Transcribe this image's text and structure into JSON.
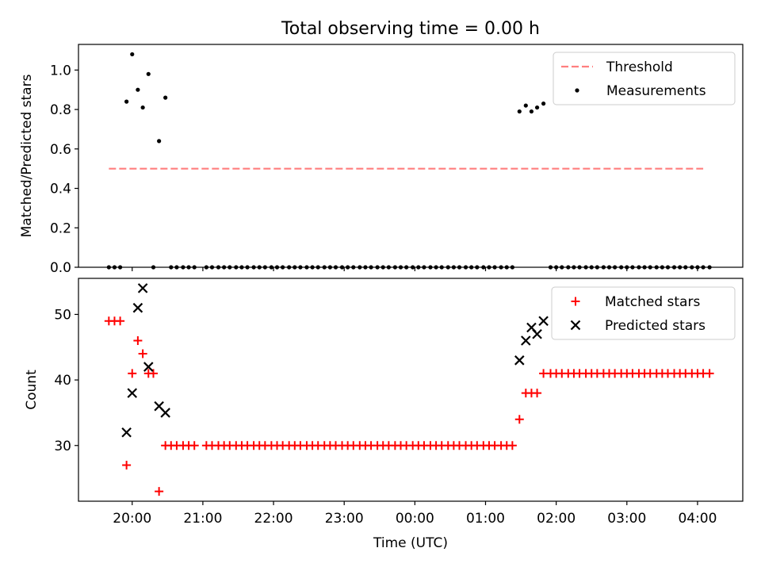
{
  "chart_data": [
    {
      "type": "scatter",
      "title": "Total observing time = 0.00 h",
      "ylabel": "Matched/Predicted stars",
      "xlabel": "",
      "xlim_hours": [
        19.24,
        28.64
      ],
      "ylim": [
        0,
        1.13
      ],
      "x_ticks": [
        20,
        21,
        22,
        23,
        24,
        25,
        26,
        27,
        28
      ],
      "x_tick_labels": [
        "20:00",
        "21:00",
        "22:00",
        "23:00",
        "00:00",
        "01:00",
        "02:00",
        "03:00",
        "04:00"
      ],
      "show_x_tick_labels": false,
      "y_ticks": [
        0.0,
        0.2,
        0.4,
        0.6,
        0.8,
        1.0
      ],
      "y_tick_labels": [
        "0.0",
        "0.2",
        "0.4",
        "0.6",
        "0.8",
        "1.0"
      ],
      "legend_position": "top-right",
      "series": [
        {
          "name": "Threshold",
          "kind": "line",
          "style": "dashed",
          "color": "#ff7f7f",
          "x": [
            19.67,
            28.08
          ],
          "y": [
            0.5,
            0.5
          ]
        },
        {
          "name": "Measurements",
          "kind": "scatter",
          "marker": "dot",
          "color": "#000000",
          "x": [
            19.67,
            19.75,
            19.83,
            19.92,
            20.0,
            20.08,
            20.15,
            20.23,
            20.3,
            20.38,
            20.47,
            20.55,
            20.63,
            20.72,
            20.8,
            20.88,
            21.05,
            21.13,
            21.22,
            21.3,
            21.38,
            21.47,
            21.55,
            21.63,
            21.72,
            21.8,
            21.88,
            21.97,
            22.05,
            22.13,
            22.22,
            22.3,
            22.38,
            22.47,
            22.55,
            22.63,
            22.72,
            22.8,
            22.88,
            22.97,
            23.05,
            23.13,
            23.22,
            23.3,
            23.38,
            23.47,
            23.55,
            23.63,
            23.72,
            23.8,
            23.88,
            23.97,
            24.05,
            24.13,
            24.22,
            24.3,
            24.38,
            24.47,
            24.55,
            24.63,
            24.72,
            24.8,
            24.88,
            24.97,
            25.05,
            25.13,
            25.22,
            25.3,
            25.38,
            25.48,
            25.57,
            25.65,
            25.73,
            25.82,
            25.92,
            26.0,
            26.08,
            26.17,
            26.25,
            26.33,
            26.42,
            26.5,
            26.58,
            26.67,
            26.75,
            26.83,
            26.92,
            27.0,
            27.08,
            27.17,
            27.25,
            27.33,
            27.42,
            27.5,
            27.58,
            27.67,
            27.75,
            27.83,
            27.92,
            28.0,
            28.08,
            28.17
          ],
          "y": [
            0,
            0,
            0,
            0.84,
            1.08,
            0.9,
            0.81,
            0.98,
            0,
            0.64,
            0.86,
            0,
            0,
            0,
            0,
            0,
            0,
            0,
            0,
            0,
            0,
            0,
            0,
            0,
            0,
            0,
            0,
            0,
            0,
            0,
            0,
            0,
            0,
            0,
            0,
            0,
            0,
            0,
            0,
            0,
            0,
            0,
            0,
            0,
            0,
            0,
            0,
            0,
            0,
            0,
            0,
            0,
            0,
            0,
            0,
            0,
            0,
            0,
            0,
            0,
            0,
            0,
            0,
            0,
            0,
            0,
            0,
            0,
            0,
            0.79,
            0.82,
            0.79,
            0.81,
            0.83,
            0,
            0,
            0,
            0,
            0,
            0,
            0,
            0,
            0,
            0,
            0,
            0,
            0,
            0,
            0,
            0,
            0,
            0,
            0,
            0,
            0,
            0,
            0,
            0,
            0,
            0,
            0,
            0
          ]
        }
      ]
    },
    {
      "type": "scatter",
      "title": "",
      "ylabel": "Count",
      "xlabel": "Time (UTC)",
      "xlim_hours": [
        19.24,
        28.64
      ],
      "ylim": [
        21.5,
        55.5
      ],
      "x_ticks": [
        20,
        21,
        22,
        23,
        24,
        25,
        26,
        27,
        28
      ],
      "x_tick_labels": [
        "20:00",
        "21:00",
        "22:00",
        "23:00",
        "00:00",
        "01:00",
        "02:00",
        "03:00",
        "04:00"
      ],
      "show_x_tick_labels": true,
      "y_ticks": [
        30,
        40,
        50
      ],
      "y_tick_labels": [
        "30",
        "40",
        "50"
      ],
      "legend_position": "top-right",
      "series": [
        {
          "name": "Matched stars",
          "kind": "scatter",
          "marker": "plus",
          "color": "#ff0000",
          "x": [
            19.67,
            19.75,
            19.83,
            19.92,
            20.0,
            20.08,
            20.15,
            20.23,
            20.3,
            20.38,
            20.47,
            20.55,
            20.63,
            20.72,
            20.8,
            20.88,
            21.05,
            21.13,
            21.22,
            21.3,
            21.38,
            21.47,
            21.55,
            21.63,
            21.72,
            21.8,
            21.88,
            21.97,
            22.05,
            22.13,
            22.22,
            22.3,
            22.38,
            22.47,
            22.55,
            22.63,
            22.72,
            22.8,
            22.88,
            22.97,
            23.05,
            23.13,
            23.22,
            23.3,
            23.38,
            23.47,
            23.55,
            23.63,
            23.72,
            23.8,
            23.88,
            23.97,
            24.05,
            24.13,
            24.22,
            24.3,
            24.38,
            24.47,
            24.55,
            24.63,
            24.72,
            24.8,
            24.88,
            24.97,
            25.05,
            25.13,
            25.22,
            25.3,
            25.38,
            25.48,
            25.57,
            25.65,
            25.73,
            25.82,
            25.92,
            26.0,
            26.08,
            26.17,
            26.25,
            26.33,
            26.42,
            26.5,
            26.58,
            26.67,
            26.75,
            26.83,
            26.92,
            27.0,
            27.08,
            27.17,
            27.25,
            27.33,
            27.42,
            27.5,
            27.58,
            27.67,
            27.75,
            27.83,
            27.92,
            28.0,
            28.08,
            28.17
          ],
          "y": [
            49,
            49,
            49,
            27,
            41,
            46,
            44,
            41,
            41,
            23,
            30,
            30,
            30,
            30,
            30,
            30,
            30,
            30,
            30,
            30,
            30,
            30,
            30,
            30,
            30,
            30,
            30,
            30,
            30,
            30,
            30,
            30,
            30,
            30,
            30,
            30,
            30,
            30,
            30,
            30,
            30,
            30,
            30,
            30,
            30,
            30,
            30,
            30,
            30,
            30,
            30,
            30,
            30,
            30,
            30,
            30,
            30,
            30,
            30,
            30,
            30,
            30,
            30,
            30,
            30,
            30,
            30,
            30,
            30,
            34,
            38,
            38,
            38,
            41,
            41,
            41,
            41,
            41,
            41,
            41,
            41,
            41,
            41,
            41,
            41,
            41,
            41,
            41,
            41,
            41,
            41,
            41,
            41,
            41,
            41,
            41,
            41,
            41,
            41,
            41,
            41,
            41
          ]
        },
        {
          "name": "Predicted stars",
          "kind": "scatter",
          "marker": "x",
          "color": "#000000",
          "x": [
            19.92,
            20.0,
            20.08,
            20.15,
            20.23,
            20.38,
            20.47,
            25.48,
            25.57,
            25.65,
            25.73,
            25.82
          ],
          "y": [
            32,
            38,
            51,
            54,
            42,
            36,
            35,
            43,
            46,
            48,
            47,
            49
          ]
        }
      ]
    }
  ]
}
